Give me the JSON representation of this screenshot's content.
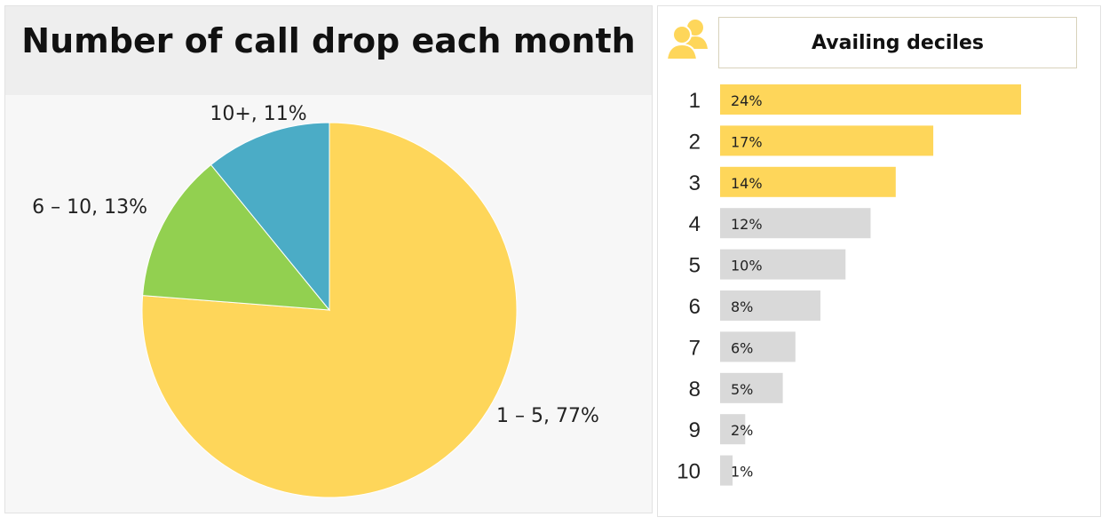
{
  "pie_panel": {
    "title": "Number of call drop each month"
  },
  "deciles_panel": {
    "title": "Availing deciles",
    "icon": "people-icon"
  },
  "colors": {
    "yellow": "#fed65a",
    "green": "#92d050",
    "blue": "#4bacc6",
    "gray": "#d9d9d9"
  },
  "chart_data": [
    {
      "type": "pie",
      "title": "Number of call drop each month",
      "slices": [
        {
          "label": "1 – 5",
          "value": 77,
          "display": "1 – 5, 77%",
          "color": "#fed65a"
        },
        {
          "label": "6 – 10",
          "value": 13,
          "display": "6 – 10, 13%",
          "color": "#92d050"
        },
        {
          "label": "10+",
          "value": 11,
          "display": "10+, 11%",
          "color": "#4bacc6"
        }
      ]
    },
    {
      "type": "bar",
      "orientation": "horizontal",
      "title": "Availing deciles",
      "categories": [
        "1",
        "2",
        "3",
        "4",
        "5",
        "6",
        "7",
        "8",
        "9",
        "10"
      ],
      "values": [
        24,
        17,
        14,
        12,
        10,
        8,
        6,
        5,
        2,
        1
      ],
      "value_labels": [
        "24%",
        "17%",
        "14%",
        "12%",
        "10%",
        "8%",
        "6%",
        "5%",
        "2%",
        "1%"
      ],
      "highlighted": [
        true,
        true,
        true,
        false,
        false,
        false,
        false,
        false,
        false,
        false
      ],
      "xlim": [
        0,
        24
      ]
    }
  ]
}
